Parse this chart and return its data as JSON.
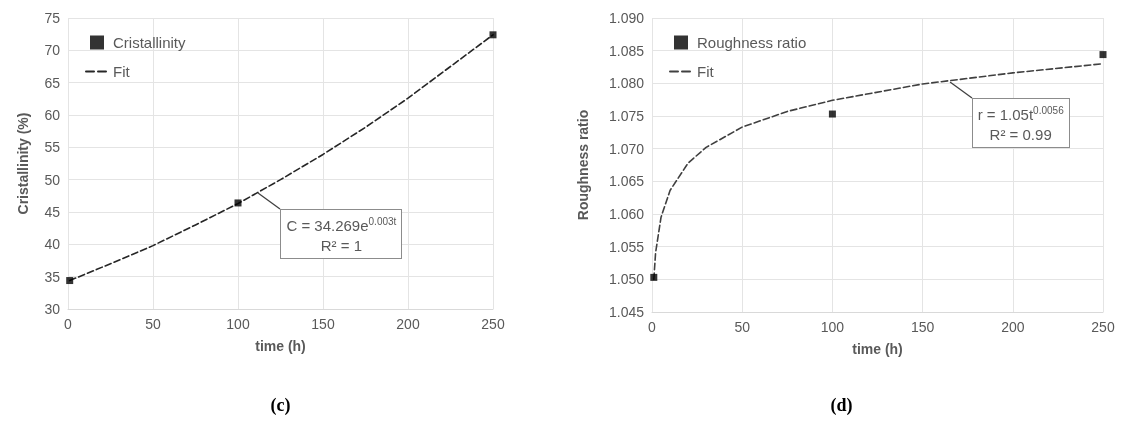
{
  "chart_data": [
    {
      "type": "scatter",
      "title": "(c)",
      "xlabel": "time (h)",
      "ylabel": "Cristallinity (%)",
      "xlim": [
        0,
        250
      ],
      "xticks": [
        0,
        50,
        100,
        150,
        200,
        250
      ],
      "ylim": [
        30,
        75
      ],
      "yticks": [
        30,
        35,
        40,
        45,
        50,
        55,
        60,
        65,
        70,
        75
      ],
      "grid": true,
      "legend": "top left",
      "annotations": [
        {
          "text": "C = 34.269e$^{0.003t}$\nR² = 1",
          "x": 112,
          "y": 48
        }
      ],
      "series": [
        {
          "name": "Cristallinity",
          "marker": "square",
          "color": "#000000",
          "x": [
            1,
            100,
            250
          ],
          "values": [
            34.4,
            46.4,
            72.4
          ]
        },
        {
          "name": "Fit",
          "type": "line",
          "line_style": "dashed",
          "color": "#262626",
          "x": [
            1,
            25,
            50,
            75,
            100,
            125,
            150,
            175,
            200,
            225,
            250
          ],
          "values": [
            34.4,
            37.0,
            39.8,
            43.0,
            46.3,
            50.0,
            53.9,
            58.1,
            62.6,
            67.5,
            72.4
          ]
        }
      ]
    },
    {
      "type": "scatter",
      "title": "(d)",
      "xlabel": "time (h)",
      "ylabel": "Roughness ratio",
      "xlim": [
        0,
        250
      ],
      "xticks": [
        0,
        50,
        100,
        150,
        200,
        250
      ],
      "ylim": [
        1.045,
        1.09
      ],
      "yticks": [
        {
          "value": 1.045,
          "label": "1.045"
        },
        {
          "value": 1.05,
          "label": "1.050"
        },
        {
          "value": 1.055,
          "label": "1.055"
        },
        {
          "value": 1.06,
          "label": "1.060"
        },
        {
          "value": 1.065,
          "label": "1.065"
        },
        {
          "value": 1.07,
          "label": "1.070"
        },
        {
          "value": 1.075,
          "label": "1.075"
        },
        {
          "value": 1.08,
          "label": "1.080"
        },
        {
          "value": 1.085,
          "label": "1.085"
        },
        {
          "value": 1.09,
          "label": "1.090"
        }
      ],
      "grid": true,
      "legend": "top left",
      "annotations": [
        {
          "text": "r = 1.05t$^{0.0056}$\nR² = 0.99",
          "x": 165,
          "y": 1.0802
        }
      ],
      "series": [
        {
          "name": "Roughness ratio",
          "marker": "square",
          "color": "#000000",
          "x": [
            1,
            100,
            250
          ],
          "values": [
            1.0503,
            1.0753,
            1.0844
          ]
        },
        {
          "name": "Fit",
          "type": "line",
          "line_style": "dashed",
          "color": "#404040",
          "x": [
            1,
            2,
            5,
            10,
            20,
            30,
            50,
            75,
            100,
            150,
            200,
            250
          ],
          "values": [
            1.05,
            1.0541,
            1.0595,
            1.0636,
            1.0678,
            1.0702,
            1.0733,
            1.0757,
            1.0774,
            1.0799,
            1.0816,
            1.083
          ]
        }
      ]
    }
  ]
}
